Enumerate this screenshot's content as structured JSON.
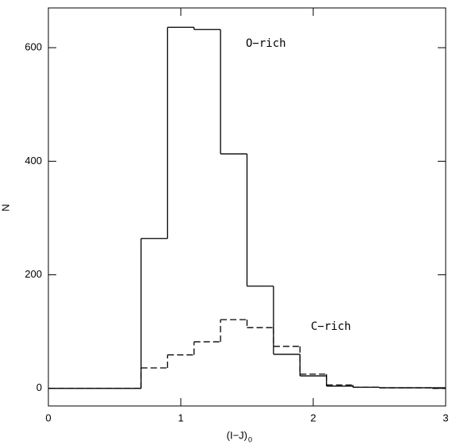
{
  "chart_data": {
    "type": "histogram",
    "xlabel": "(I−J)",
    "xlabel_subscript": "0",
    "ylabel": "N",
    "bins": [
      0,
      0.7,
      0.9,
      1.1,
      1.3,
      1.5,
      1.7,
      1.9,
      2.1,
      2.3,
      2.5,
      2.7,
      2.9,
      3
    ],
    "series": [
      {
        "name": "O−rich",
        "color": "#000000",
        "linestyle": "solid",
        "values": [
          0,
          264,
          636,
          632,
          413,
          180,
          60,
          22,
          4,
          2,
          1,
          1,
          1
        ]
      },
      {
        "name": "C−rich",
        "color": "#000000",
        "linestyle": "dashed",
        "values": [
          0,
          36,
          59,
          82,
          121,
          107,
          74,
          25,
          6,
          2,
          1,
          1,
          0
        ]
      }
    ],
    "xlim": [
      0,
      3
    ],
    "ylim": [
      -31,
      670
    ],
    "xticks": [
      0,
      1,
      2,
      3
    ],
    "yticks": [
      0,
      200,
      400,
      600
    ]
  }
}
